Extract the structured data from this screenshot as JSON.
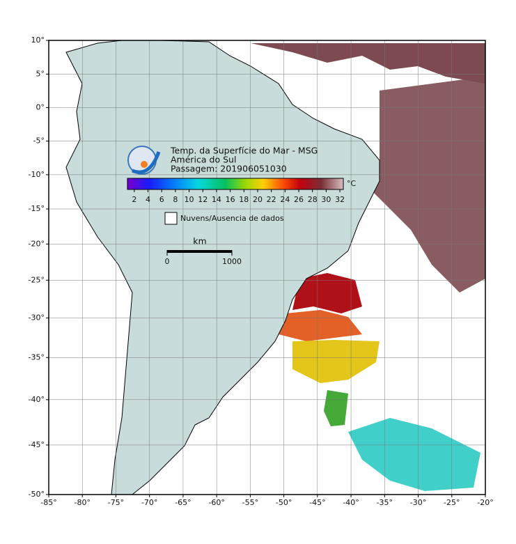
{
  "map": {
    "title": "Temp. da Superfície do Mar - MSG",
    "subtitle": "América do Sul",
    "pass": "Passagem: 201906051030",
    "xlim": [
      -85,
      -20
    ],
    "ylim": [
      -50,
      10
    ],
    "xticks": [
      {
        "value": -85,
        "label": "-85°"
      },
      {
        "value": -80,
        "label": "-80°"
      },
      {
        "value": -75,
        "label": "-75°"
      },
      {
        "value": -70,
        "label": "-70°"
      },
      {
        "value": -65,
        "label": "-65°"
      },
      {
        "value": -60,
        "label": "-60°"
      },
      {
        "value": -55,
        "label": "-55°"
      },
      {
        "value": -50,
        "label": "-50°"
      },
      {
        "value": -45,
        "label": "-45°"
      },
      {
        "value": -40,
        "label": "-40°"
      },
      {
        "value": -35,
        "label": "-35°"
      },
      {
        "value": -30,
        "label": "-30°"
      },
      {
        "value": -25,
        "label": "-25°"
      },
      {
        "value": -20,
        "label": "-20°"
      }
    ],
    "yticks": [
      {
        "value": 10,
        "label": "10°"
      },
      {
        "value": 5,
        "label": "5°"
      },
      {
        "value": 0,
        "label": "0°"
      },
      {
        "value": -5,
        "label": "-5°"
      },
      {
        "value": -10,
        "label": "-10°"
      },
      {
        "value": -15,
        "label": "-15°"
      },
      {
        "value": -20,
        "label": "-20°"
      },
      {
        "value": -25,
        "label": "-25°"
      },
      {
        "value": -30,
        "label": "-30°"
      },
      {
        "value": -35,
        "label": "-35°"
      },
      {
        "value": -40,
        "label": "-40°"
      },
      {
        "value": -45,
        "label": "-45°"
      },
      {
        "value": -50,
        "label": "-50°"
      }
    ],
    "grid": true,
    "colorbar": {
      "unit": "°C",
      "lim": [
        1,
        32.5
      ],
      "ticks": [
        2,
        4,
        6,
        8,
        10,
        12,
        14,
        16,
        18,
        20,
        22,
        24,
        26,
        28,
        30,
        32
      ]
    },
    "legend": "Nuvens/Ausencia de dados",
    "scale": {
      "unit": "km",
      "ticks": [
        0,
        1000
      ]
    }
  }
}
